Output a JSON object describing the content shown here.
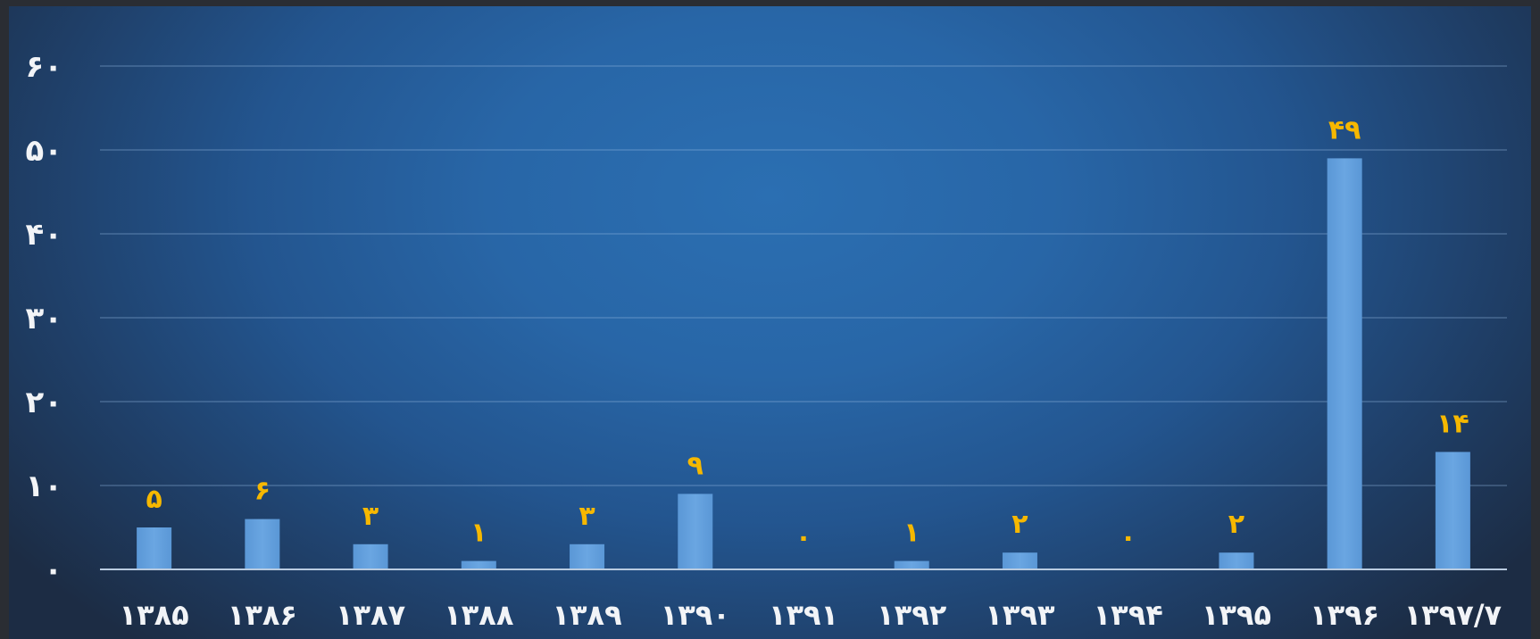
{
  "chart_data": {
    "type": "bar",
    "title": "",
    "xlabel": "",
    "ylabel": "",
    "categories": [
      "۱۳۸۵",
      "۱۳۸۶",
      "۱۳۸۷",
      "۱۳۸۸",
      "۱۳۸۹",
      "۱۳۹۰",
      "۱۳۹۱",
      "۱۳۹۲",
      "۱۳۹۳",
      "۱۳۹۴",
      "۱۳۹۵",
      "۱۳۹۶",
      "۱۳۹۷/۷"
    ],
    "values": [
      5,
      6,
      3,
      1,
      3,
      9,
      0,
      1,
      2,
      0,
      2,
      49,
      14
    ],
    "data_labels": [
      "۵",
      "۶",
      "۳",
      "۱",
      "۳",
      "۹",
      "۰",
      "۱",
      "۲",
      "۰",
      "۲",
      "۴۹",
      "۱۴"
    ],
    "ylim": [
      0,
      60
    ],
    "yticks": [
      0,
      10,
      20,
      30,
      40,
      50,
      60
    ],
    "ytick_labels": [
      "۰",
      "۱۰",
      "۲۰",
      "۳۰",
      "۴۰",
      "۵۰",
      "۶۰"
    ],
    "grid": true,
    "legend": "none",
    "colors": {
      "bar": "#5f9ddb",
      "data_label": "#f6b800",
      "tick_label": "#f2f4f7"
    }
  }
}
